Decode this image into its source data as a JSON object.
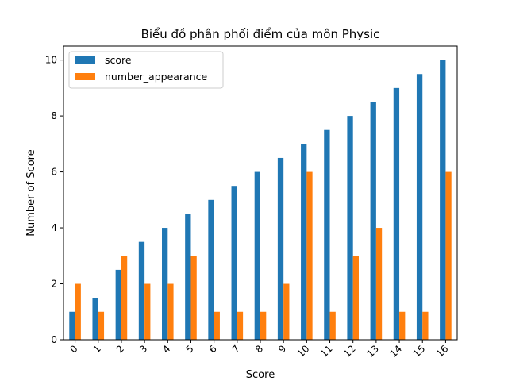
{
  "chart_data": {
    "type": "bar",
    "title": "Biểu đồ phân phối điểm của môn  Physic",
    "xlabel": "Score",
    "ylabel": "Number of Score",
    "categories": [
      "0",
      "1",
      "2",
      "3",
      "4",
      "5",
      "6",
      "7",
      "8",
      "9",
      "10",
      "11",
      "12",
      "13",
      "14",
      "15",
      "16"
    ],
    "series": [
      {
        "name": "score",
        "color": "#1f77b4",
        "values": [
          1,
          1.5,
          2.5,
          3.5,
          4,
          4.5,
          5,
          5.5,
          6,
          6.5,
          7,
          7.5,
          8,
          8.5,
          9,
          9.5,
          10
        ]
      },
      {
        "name": "number_appearance",
        "color": "#ff7f0e",
        "values": [
          2,
          1,
          3,
          2,
          2,
          3,
          1,
          1,
          1,
          2,
          6,
          1,
          3,
          4,
          1,
          1,
          6
        ]
      }
    ],
    "ylim": [
      0,
      10.5
    ],
    "yticks": [
      0,
      2,
      4,
      6,
      8,
      10
    ],
    "grid": false,
    "legend_position": "top-left",
    "xtick_rotation": 45
  }
}
